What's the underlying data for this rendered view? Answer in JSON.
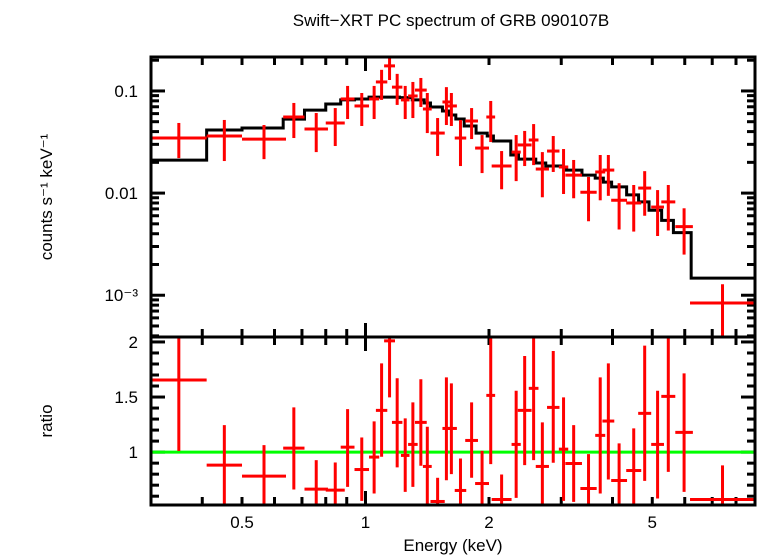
{
  "chart_data": [
    {
      "type": "scatter",
      "panel": "spectrum",
      "title": "Swift−XRT PC spectrum of GRB 090107B",
      "ylabel": "counts s⁻¹ keV⁻¹",
      "xscale": "log",
      "yscale": "log",
      "xlim": [
        0.3,
        8.9
      ],
      "ylim": [
        0.00039,
        0.215
      ],
      "xticks": [
        {
          "v": 0.5,
          "label": "0.5"
        },
        {
          "v": 1,
          "label": "1"
        },
        {
          "v": 2,
          "label": "2"
        },
        {
          "v": 5,
          "label": "5"
        }
      ],
      "yticks": [
        {
          "v": 0.1,
          "label": "0.1"
        },
        {
          "v": 0.01,
          "label": "0.01"
        },
        {
          "v": 0.001,
          "label": "10⁻³"
        }
      ],
      "data_color": "#ff0000",
      "model_color": "#000000",
      "data": [
        {
          "e": [
            0.3,
            0.41
          ],
          "y": 0.0346,
          "yerr": [
            0.022,
            0.0486
          ]
        },
        {
          "e": [
            0.41,
            0.5
          ],
          "y": 0.0362,
          "yerr": [
            0.0206,
            0.052
          ]
        },
        {
          "e": [
            0.5,
            0.64
          ],
          "y": 0.0338,
          "yerr": [
            0.0215,
            0.0464
          ]
        },
        {
          "e": [
            0.63,
            0.71
          ],
          "y": 0.0556,
          "yerr": [
            0.0346,
            0.0763
          ]
        },
        {
          "e": [
            0.71,
            0.81
          ],
          "y": 0.0424,
          "yerr": [
            0.0252,
            0.0608
          ]
        },
        {
          "e": [
            0.8,
            0.89
          ],
          "y": 0.0486,
          "yerr": [
            0.0289,
            0.068
          ]
        },
        {
          "e": [
            0.87,
            0.94
          ],
          "y": 0.0835,
          "yerr": [
            0.0531,
            0.112
          ]
        },
        {
          "e": [
            0.94,
            1.02
          ],
          "y": 0.0713,
          "yerr": [
            0.0454,
            0.0955
          ]
        },
        {
          "e": [
            1.02,
            1.08
          ],
          "y": 0.0835,
          "yerr": [
            0.0531,
            0.112
          ]
        },
        {
          "e": [
            1.06,
            1.13
          ],
          "y": 0.1225,
          "yerr": [
            0.0817,
            0.161
          ]
        },
        {
          "e": [
            1.11,
            1.18
          ],
          "y": 0.176,
          "yerr": [
            0.128,
            0.225
          ]
        },
        {
          "e": [
            1.16,
            1.23
          ],
          "y": 0.109,
          "yerr": [
            0.073,
            0.147
          ]
        },
        {
          "e": [
            1.22,
            1.28
          ],
          "y": 0.0817,
          "yerr": [
            0.0531,
            0.112
          ]
        },
        {
          "e": [
            1.27,
            1.34
          ],
          "y": 0.0893,
          "yerr": [
            0.0543,
            0.1225
          ]
        },
        {
          "e": [
            1.32,
            1.41
          ],
          "y": 0.102,
          "yerr": [
            0.0697,
            0.134
          ]
        },
        {
          "e": [
            1.38,
            1.45
          ],
          "y": 0.0666,
          "yerr": [
            0.0387,
            0.0955
          ]
        },
        {
          "e": [
            1.44,
            1.56
          ],
          "y": 0.0387,
          "yerr": [
            0.0231,
            0.0543
          ]
        },
        {
          "e": [
            1.54,
            1.61
          ],
          "y": 0.078,
          "yerr": [
            0.0464,
            0.109
          ]
        },
        {
          "e": [
            1.57,
            1.67
          ],
          "y": 0.0713,
          "yerr": [
            0.0454,
            0.0955
          ]
        },
        {
          "e": [
            1.65,
            1.76
          ],
          "y": 0.0346,
          "yerr": [
            0.0184,
            0.052
          ]
        },
        {
          "e": [
            1.75,
            1.88
          ],
          "y": 0.0508,
          "yerr": [
            0.0338,
            0.068
          ]
        },
        {
          "e": [
            1.85,
            2.0
          ],
          "y": 0.0276,
          "yerr": [
            0.0157,
            0.037
          ]
        },
        {
          "e": [
            1.97,
            2.07
          ],
          "y": 0.0556,
          "yerr": [
            0.0316,
            0.0798
          ]
        },
        {
          "e": [
            2.03,
            2.27
          ],
          "y": 0.0184,
          "yerr": [
            0.0109,
            0.0258
          ]
        },
        {
          "e": [
            2.27,
            2.39
          ],
          "y": 0.0252,
          "yerr": [
            0.0131,
            0.037
          ]
        },
        {
          "e": [
            2.35,
            2.54
          ],
          "y": 0.0296,
          "yerr": [
            0.0184,
            0.0406
          ]
        },
        {
          "e": [
            2.5,
            2.64
          ],
          "y": 0.0331,
          "yerr": [
            0.0188,
            0.0474
          ]
        },
        {
          "e": [
            2.6,
            2.8
          ],
          "y": 0.0172,
          "yerr": [
            0.0091,
            0.0252
          ]
        },
        {
          "e": [
            2.77,
            2.97
          ],
          "y": 0.0258,
          "yerr": [
            0.0161,
            0.0362
          ]
        },
        {
          "e": [
            2.96,
            3.12
          ],
          "y": 0.018,
          "yerr": [
            0.0098,
            0.027
          ]
        },
        {
          "e": [
            3.07,
            3.37
          ],
          "y": 0.015,
          "yerr": [
            0.0089,
            0.0211
          ]
        },
        {
          "e": [
            3.34,
            3.66
          ],
          "y": 0.0102,
          "yerr": [
            0.0053,
            0.0144
          ]
        },
        {
          "e": [
            3.63,
            3.84
          ],
          "y": 0.0161,
          "yerr": [
            0.0085,
            0.0236
          ]
        },
        {
          "e": [
            3.78,
            4.04
          ],
          "y": 0.0168,
          "yerr": [
            0.0094,
            0.0236
          ]
        },
        {
          "e": [
            3.97,
            4.34
          ],
          "y": 0.0085,
          "yerr": [
            0.0044,
            0.0125
          ]
        },
        {
          "e": [
            4.32,
            4.7
          ],
          "y": 0.008,
          "yerr": [
            0.0042,
            0.012
          ]
        },
        {
          "e": [
            4.62,
            4.97
          ],
          "y": 0.0112,
          "yerr": [
            0.006,
            0.0164
          ]
        },
        {
          "e": [
            4.97,
            5.34
          ],
          "y": 0.0073,
          "yerr": [
            0.0038,
            0.0107
          ]
        },
        {
          "e": [
            5.26,
            5.69
          ],
          "y": 0.0082,
          "yerr": [
            0.0043,
            0.012
          ]
        },
        {
          "e": [
            5.69,
            6.28
          ],
          "y": 0.0047,
          "yerr": [
            0.0025,
            0.0071
          ]
        },
        {
          "e": [
            6.18,
            8.9
          ],
          "y": 0.00084,
          "yerr": [
            0.0003,
            0.00128
          ]
        }
      ],
      "model": [
        [
          0.3,
          0.41,
          0.021
        ],
        [
          0.41,
          0.5,
          0.0415
        ],
        [
          0.5,
          0.63,
          0.0434
        ],
        [
          0.63,
          0.71,
          0.053
        ],
        [
          0.71,
          0.8,
          0.065
        ],
        [
          0.8,
          0.87,
          0.0745
        ],
        [
          0.87,
          0.94,
          0.0817
        ],
        [
          0.94,
          1.02,
          0.0835
        ],
        [
          1.02,
          1.21,
          0.087
        ],
        [
          1.21,
          1.3,
          0.086
        ],
        [
          1.3,
          1.39,
          0.0817
        ],
        [
          1.39,
          1.44,
          0.0763
        ],
        [
          1.44,
          1.54,
          0.0697
        ],
        [
          1.54,
          1.6,
          0.0637
        ],
        [
          1.6,
          1.66,
          0.0582
        ],
        [
          1.66,
          1.74,
          0.0531
        ],
        [
          1.74,
          1.86,
          0.0454
        ],
        [
          1.86,
          1.98,
          0.0387
        ],
        [
          1.98,
          2.05,
          0.0362
        ],
        [
          2.05,
          2.26,
          0.0324
        ],
        [
          2.26,
          2.36,
          0.0236
        ],
        [
          2.36,
          2.6,
          0.0215
        ],
        [
          2.6,
          2.75,
          0.0197
        ],
        [
          2.75,
          3.01,
          0.0184
        ],
        [
          3.01,
          3.09,
          0.018
        ],
        [
          3.09,
          3.37,
          0.0168
        ],
        [
          3.37,
          3.63,
          0.015
        ],
        [
          3.63,
          3.8,
          0.014
        ],
        [
          3.8,
          3.98,
          0.0128
        ],
        [
          3.98,
          4.33,
          0.0115
        ],
        [
          4.33,
          4.63,
          0.0096
        ],
        [
          4.63,
          4.91,
          0.0082
        ],
        [
          4.91,
          5.27,
          0.0068
        ],
        [
          5.27,
          5.63,
          0.0054
        ],
        [
          5.63,
          6.22,
          0.0041
        ],
        [
          6.22,
          8.9,
          0.00147
        ]
      ]
    },
    {
      "type": "scatter",
      "panel": "ratio",
      "xlabel": "Energy (keV)",
      "ylabel": "ratio",
      "xscale": "log",
      "xlim": [
        0.3,
        8.9
      ],
      "ylim": [
        0.52,
        2.045
      ],
      "xticks": [
        {
          "v": 0.5,
          "label": "0.5"
        },
        {
          "v": 1,
          "label": "1"
        },
        {
          "v": 2,
          "label": "2"
        },
        {
          "v": 5,
          "label": "5"
        }
      ],
      "yticks": [
        {
          "v": 2,
          "label": "2"
        },
        {
          "v": 1.5,
          "label": "1.5"
        },
        {
          "v": 1,
          "label": "1"
        }
      ],
      "reference_line": 1,
      "reference_color": "#00ff00",
      "data_color": "#ff0000",
      "data": [
        {
          "e": [
            0.3,
            0.41
          ],
          "r": 1.655,
          "rerr": [
            1.01,
            2.1
          ]
        },
        {
          "e": [
            0.41,
            0.5
          ],
          "r": 0.882,
          "rerr": [
            0.5,
            1.245
          ]
        },
        {
          "e": [
            0.5,
            0.64
          ],
          "r": 0.782,
          "rerr": [
            0.45,
            1.064
          ]
        },
        {
          "e": [
            0.63,
            0.71
          ],
          "r": 1.036,
          "rerr": [
            0.661,
            1.406
          ]
        },
        {
          "e": [
            0.71,
            0.81
          ],
          "r": 0.664,
          "rerr": [
            0.45,
            0.927
          ]
        },
        {
          "e": [
            0.8,
            0.89
          ],
          "r": 0.655,
          "rerr": [
            0.45,
            0.906
          ]
        },
        {
          "e": [
            0.87,
            0.94
          ],
          "r": 1.045,
          "rerr": [
            0.685,
            1.39
          ]
        },
        {
          "e": [
            0.94,
            1.02
          ],
          "r": 0.842,
          "rerr": [
            0.557,
            1.133
          ]
        },
        {
          "e": [
            1.02,
            1.08
          ],
          "r": 0.955,
          "rerr": [
            0.624,
            1.279
          ]
        },
        {
          "e": [
            1.06,
            1.13
          ],
          "r": 1.379,
          "rerr": [
            0.958,
            1.806
          ]
        },
        {
          "e": [
            1.11,
            1.18
          ],
          "r": 2.01,
          "rerr": [
            1.497,
            2.1
          ]
        },
        {
          "e": [
            1.16,
            1.23
          ],
          "r": 1.27,
          "rerr": [
            0.861,
            1.67
          ]
        },
        {
          "e": [
            1.22,
            1.28
          ],
          "r": 0.97,
          "rerr": [
            0.639,
            1.306
          ]
        },
        {
          "e": [
            1.27,
            1.34
          ],
          "r": 1.07,
          "rerr": [
            0.685,
            1.452
          ]
        },
        {
          "e": [
            1.32,
            1.41
          ],
          "r": 1.27,
          "rerr": [
            0.876,
            1.661
          ]
        },
        {
          "e": [
            1.38,
            1.45
          ],
          "r": 0.87,
          "rerr": [
            0.45,
            1.23
          ]
        },
        {
          "e": [
            1.44,
            1.56
          ],
          "r": 0.552,
          "rerr": [
            0.45,
            0.767
          ]
        },
        {
          "e": [
            1.54,
            1.61
          ],
          "r": 1.215,
          "rerr": [
            0.745,
            1.679
          ]
        },
        {
          "e": [
            1.57,
            1.67
          ],
          "r": 1.215,
          "rerr": [
            0.8,
            1.624
          ]
        },
        {
          "e": [
            1.65,
            1.76
          ],
          "r": 0.652,
          "rerr": [
            0.45,
            0.942
          ]
        },
        {
          "e": [
            1.75,
            1.88
          ],
          "r": 1.106,
          "rerr": [
            0.767,
            1.452
          ]
        },
        {
          "e": [
            1.85,
            2.0
          ],
          "r": 0.715,
          "rerr": [
            0.45,
            1.012
          ]
        },
        {
          "e": [
            1.97,
            2.07
          ],
          "r": 1.515,
          "rerr": [
            0.891,
            2.1
          ]
        },
        {
          "e": [
            2.03,
            2.27
          ],
          "r": 0.57,
          "rerr": [
            0.45,
            0.797
          ]
        },
        {
          "e": [
            2.27,
            2.39
          ],
          "r": 1.07,
          "rerr": [
            0.585,
            1.557
          ]
        },
        {
          "e": [
            2.35,
            2.54
          ],
          "r": 1.379,
          "rerr": [
            0.882,
            1.873
          ]
        },
        {
          "e": [
            2.5,
            2.64
          ],
          "r": 1.579,
          "rerr": [
            0.927,
            2.1
          ]
        },
        {
          "e": [
            2.6,
            2.8
          ],
          "r": 0.87,
          "rerr": [
            0.45,
            1.27
          ]
        },
        {
          "e": [
            2.77,
            2.97
          ],
          "r": 1.406,
          "rerr": [
            0.903,
            1.918
          ]
        },
        {
          "e": [
            2.96,
            3.12
          ],
          "r": 1.027,
          "rerr": [
            0.557,
            1.497
          ]
        },
        {
          "e": [
            3.07,
            3.37
          ],
          "r": 0.897,
          "rerr": [
            0.548,
            1.245
          ]
        },
        {
          "e": [
            3.34,
            3.66
          ],
          "r": 0.67,
          "rerr": [
            0.45,
            0.982
          ]
        },
        {
          "e": [
            3.63,
            3.84
          ],
          "r": 1.152,
          "rerr": [
            0.624,
            1.679
          ]
        },
        {
          "e": [
            3.78,
            4.04
          ],
          "r": 1.282,
          "rerr": [
            0.752,
            1.806
          ]
        },
        {
          "e": [
            3.97,
            4.34
          ],
          "r": 0.742,
          "rerr": [
            0.45,
            1.079
          ]
        },
        {
          "e": [
            4.32,
            4.7
          ],
          "r": 0.833,
          "rerr": [
            0.45,
            1.215
          ]
        },
        {
          "e": [
            4.62,
            4.97
          ],
          "r": 1.352,
          "rerr": [
            0.739,
            1.967
          ]
        },
        {
          "e": [
            4.97,
            5.34
          ],
          "r": 1.07,
          "rerr": [
            0.579,
            1.557
          ]
        },
        {
          "e": [
            5.26,
            5.69
          ],
          "r": 1.506,
          "rerr": [
            0.821,
            2.1
          ]
        },
        {
          "e": [
            5.69,
            6.28
          ],
          "r": 1.179,
          "rerr": [
            0.639,
            1.715
          ]
        },
        {
          "e": [
            6.18,
            8.9
          ],
          "r": 0.57,
          "rerr": [
            0.3,
            0.88
          ]
        }
      ]
    }
  ]
}
